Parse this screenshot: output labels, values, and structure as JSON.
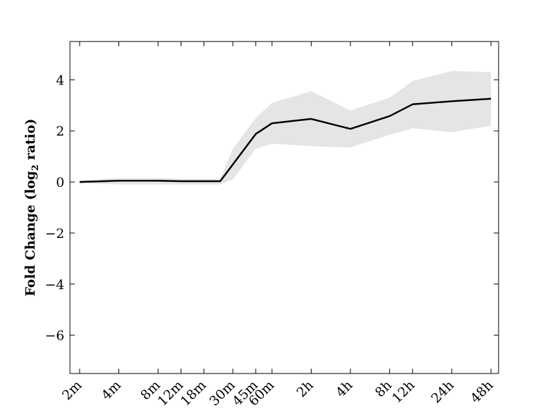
{
  "chart_data": {
    "type": "line",
    "title": "",
    "xlabel": "",
    "ylabel": "Fold Change (log",
    "ylabel_sub": "2",
    "ylabel_tail": " ratio)",
    "x_scale": "log",
    "categories": [
      "2m",
      "4m",
      "8m",
      "12m",
      "18m",
      "30m",
      "45m",
      "60m",
      "2h",
      "4h",
      "8h",
      "12h",
      "24h",
      "48h"
    ],
    "x_minutes": [
      2,
      4,
      8,
      12,
      18,
      30,
      45,
      60,
      120,
      240,
      480,
      720,
      1440,
      2880
    ],
    "ylim": [
      -7.5,
      5.5
    ],
    "yticks": [
      -6,
      -4,
      -2,
      0,
      2,
      4
    ],
    "ytick_labels": [
      "−6",
      "−4",
      "−2",
      "0",
      "2",
      "4"
    ],
    "grid": false,
    "series": [
      {
        "name": "",
        "color": "#000000",
        "points": [
          {
            "x": 2,
            "y": 0.0
          },
          {
            "x": 4,
            "y": 0.05
          },
          {
            "x": 8,
            "y": 0.05
          },
          {
            "x": 12,
            "y": 0.03
          },
          {
            "x": 24,
            "y": 0.03
          },
          {
            "x": 45,
            "y": 1.88
          },
          {
            "x": 60,
            "y": 2.3
          },
          {
            "x": 120,
            "y": 2.47
          },
          {
            "x": 240,
            "y": 2.08
          },
          {
            "x": 480,
            "y": 2.58
          },
          {
            "x": 720,
            "y": 3.04
          },
          {
            "x": 1440,
            "y": 3.16
          },
          {
            "x": 2880,
            "y": 3.26
          }
        ]
      }
    ],
    "band": {
      "color": "#e5e5e5",
      "points": [
        {
          "x": 2,
          "low": -0.05,
          "high": 0.05
        },
        {
          "x": 4,
          "low": -0.1,
          "high": 0.15
        },
        {
          "x": 8,
          "low": -0.1,
          "high": 0.15
        },
        {
          "x": 12,
          "low": -0.1,
          "high": 0.12
        },
        {
          "x": 24,
          "low": -0.1,
          "high": 0.12
        },
        {
          "x": 30,
          "low": 0.1,
          "high": 1.3
        },
        {
          "x": 45,
          "low": 1.3,
          "high": 2.5
        },
        {
          "x": 60,
          "low": 1.5,
          "high": 3.1
        },
        {
          "x": 120,
          "low": 1.4,
          "high": 3.55
        },
        {
          "x": 240,
          "low": 1.35,
          "high": 2.8
        },
        {
          "x": 480,
          "low": 1.85,
          "high": 3.3
        },
        {
          "x": 720,
          "low": 2.1,
          "high": 3.95
        },
        {
          "x": 1440,
          "low": 1.95,
          "high": 4.35
        },
        {
          "x": 2880,
          "low": 2.2,
          "high": 4.3
        }
      ]
    }
  }
}
